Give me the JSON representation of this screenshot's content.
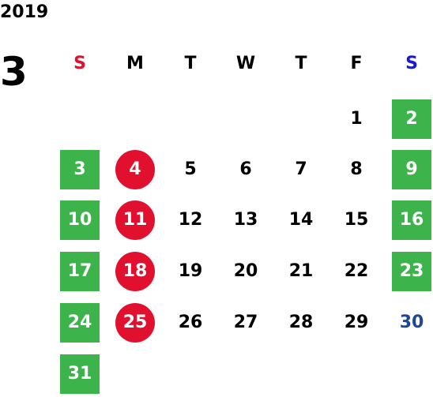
{
  "calendar": {
    "year": "2019",
    "month": "3",
    "weekdays": [
      {
        "label": "S",
        "color": "#e0102e"
      },
      {
        "label": "M",
        "color": "#000000"
      },
      {
        "label": "T",
        "color": "#000000"
      },
      {
        "label": "W",
        "color": "#000000"
      },
      {
        "label": "T",
        "color": "#000000"
      },
      {
        "label": "F",
        "color": "#000000"
      },
      {
        "label": "S",
        "color": "#1a1ad6"
      }
    ],
    "weeks": [
      [
        null,
        null,
        null,
        null,
        null,
        {
          "day": "1"
        },
        {
          "day": "2",
          "style": "weekend"
        }
      ],
      [
        {
          "day": "3",
          "style": "weekend"
        },
        {
          "day": "4",
          "style": "holiday"
        },
        {
          "day": "5"
        },
        {
          "day": "6"
        },
        {
          "day": "7"
        },
        {
          "day": "8"
        },
        {
          "day": "9",
          "style": "weekend"
        }
      ],
      [
        {
          "day": "10",
          "style": "weekend"
        },
        {
          "day": "11",
          "style": "holiday"
        },
        {
          "day": "12"
        },
        {
          "day": "13"
        },
        {
          "day": "14"
        },
        {
          "day": "15"
        },
        {
          "day": "16",
          "style": "weekend"
        }
      ],
      [
        {
          "day": "17",
          "style": "weekend"
        },
        {
          "day": "18",
          "style": "holiday"
        },
        {
          "day": "19"
        },
        {
          "day": "20"
        },
        {
          "day": "21"
        },
        {
          "day": "22"
        },
        {
          "day": "23",
          "style": "weekend"
        }
      ],
      [
        {
          "day": "24",
          "style": "weekend"
        },
        {
          "day": "25",
          "style": "holiday"
        },
        {
          "day": "26"
        },
        {
          "day": "27"
        },
        {
          "day": "28"
        },
        {
          "day": "29"
        },
        {
          "day": "30",
          "style": "plain-blue"
        }
      ],
      [
        {
          "day": "31",
          "style": "weekend"
        },
        null,
        null,
        null,
        null,
        null,
        null
      ]
    ]
  },
  "colors": {
    "weekend_green": "#3cb44b",
    "holiday_red": "#e0102e",
    "saturday_blue": "#1f4596"
  }
}
